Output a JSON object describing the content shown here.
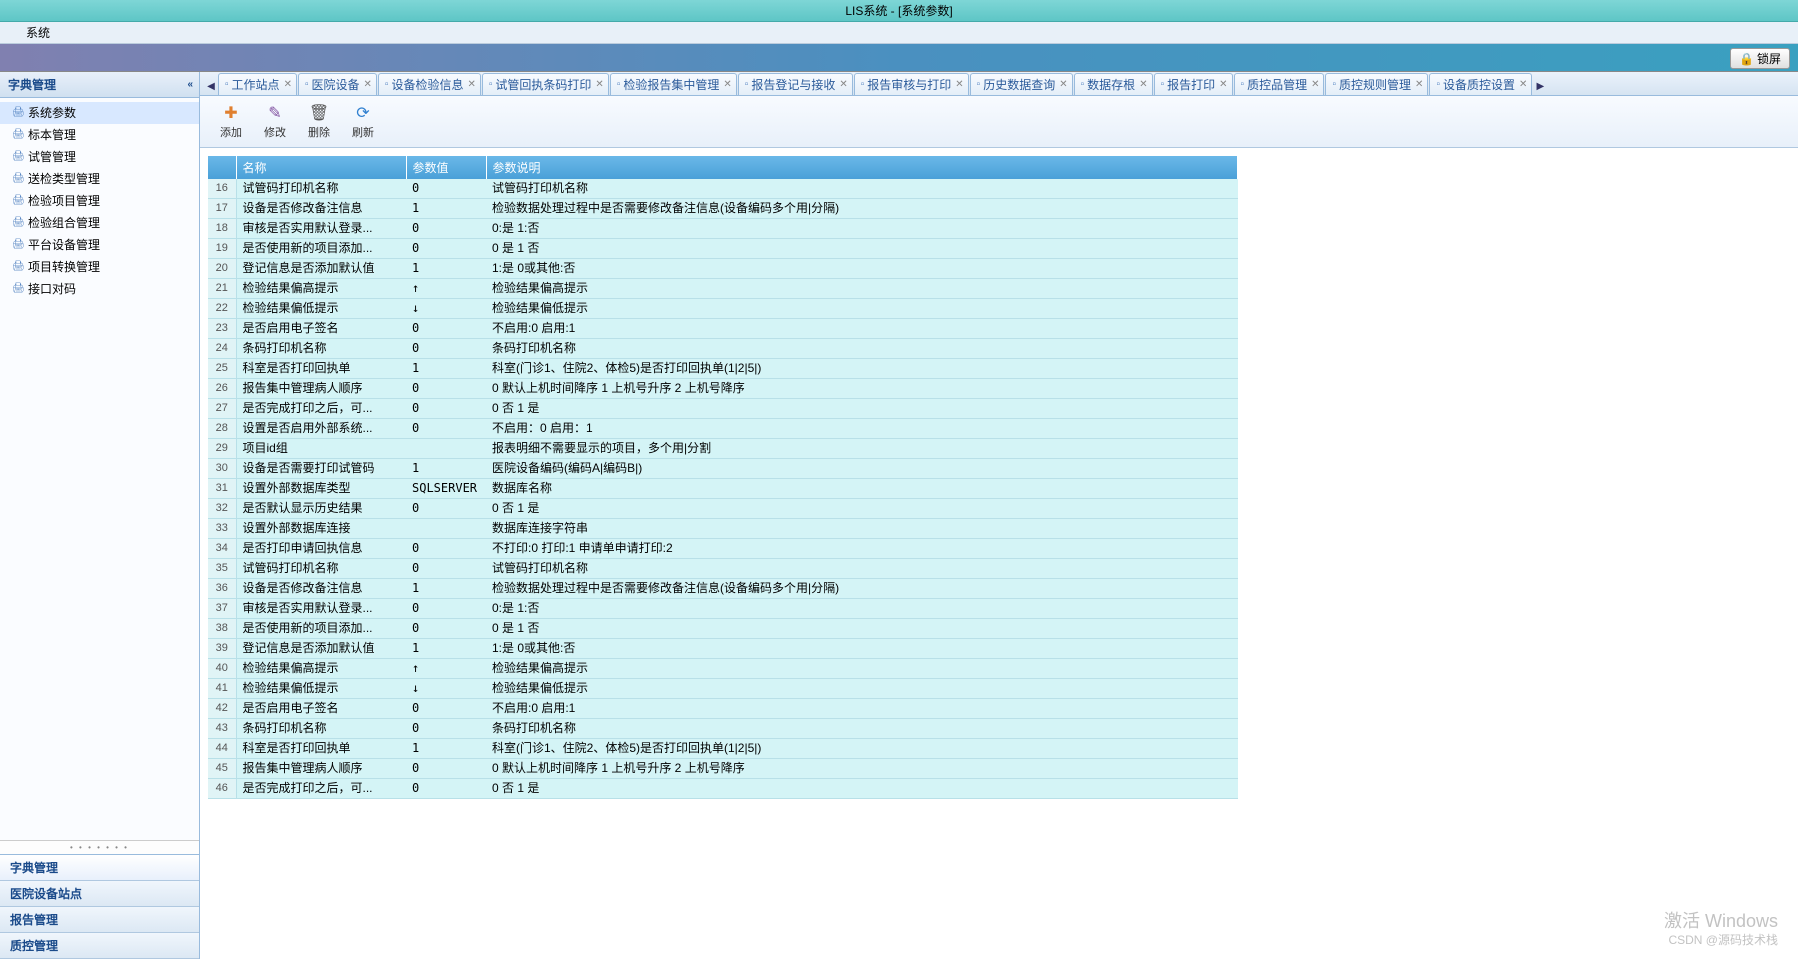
{
  "window": {
    "title": "LIS系统 - [系统参数]"
  },
  "menubar": {
    "system": "系统"
  },
  "lockscreen": {
    "label": "锁屏"
  },
  "sidebar": {
    "title": "字典管理",
    "items": [
      {
        "label": "系统参数",
        "active": true
      },
      {
        "label": "标本管理"
      },
      {
        "label": "试管管理"
      },
      {
        "label": "送检类型管理"
      },
      {
        "label": "检验项目管理"
      },
      {
        "label": "检验组合管理"
      },
      {
        "label": "平台设备管理"
      },
      {
        "label": "项目转换管理"
      },
      {
        "label": "接口对码"
      }
    ],
    "nav": [
      {
        "label": "字典管理",
        "selected": true
      },
      {
        "label": "医院设备站点"
      },
      {
        "label": "报告管理"
      },
      {
        "label": "质控管理"
      }
    ]
  },
  "tabs": {
    "items": [
      {
        "label": "工作站点"
      },
      {
        "label": "医院设备"
      },
      {
        "label": "设备检验信息"
      },
      {
        "label": "试管回执条码打印"
      },
      {
        "label": "检验报告集中管理"
      },
      {
        "label": "报告登记与接收"
      },
      {
        "label": "报告审核与打印"
      },
      {
        "label": "历史数据查询"
      },
      {
        "label": "数据存根"
      },
      {
        "label": "报告打印"
      },
      {
        "label": "质控品管理"
      },
      {
        "label": "质控规则管理"
      },
      {
        "label": "设备质控设置"
      }
    ]
  },
  "toolbar": {
    "add": "添加",
    "edit": "修改",
    "delete": "删除",
    "refresh": "刷新"
  },
  "grid": {
    "headers": {
      "name": "名称",
      "value": "参数值",
      "desc": "参数说明"
    },
    "rows": [
      {
        "n": 16,
        "name": "试管码打印机名称",
        "value": "0",
        "desc": "试管码打印机名称"
      },
      {
        "n": 17,
        "name": "设备是否修改备注信息",
        "value": "1",
        "desc": "检验数据处理过程中是否需要修改备注信息(设备编码多个用|分隔)"
      },
      {
        "n": 18,
        "name": "审核是否实用默认登录...",
        "value": "0",
        "desc": "0:是 1:否"
      },
      {
        "n": 19,
        "name": "是否使用新的项目添加...",
        "value": "0",
        "desc": "0 是 1 否"
      },
      {
        "n": 20,
        "name": "登记信息是否添加默认值",
        "value": "1",
        "desc": "1:是 0或其他:否"
      },
      {
        "n": 21,
        "name": "检验结果偏高提示",
        "value": "↑",
        "desc": "检验结果偏高提示"
      },
      {
        "n": 22,
        "name": "检验结果偏低提示",
        "value": "↓",
        "desc": "检验结果偏低提示"
      },
      {
        "n": 23,
        "name": "是否启用电子签名",
        "value": "0",
        "desc": "不启用:0 启用:1"
      },
      {
        "n": 24,
        "name": "条码打印机名称",
        "value": "0",
        "desc": "条码打印机名称"
      },
      {
        "n": 25,
        "name": "科室是否打印回执单",
        "value": "1",
        "desc": "科室(门诊1、住院2、体检5)是否打印回执单(1|2|5|)"
      },
      {
        "n": 26,
        "name": "报告集中管理病人顺序",
        "value": "0",
        "desc": "0 默认上机时间降序  1 上机号升序  2 上机号降序"
      },
      {
        "n": 27,
        "name": "是否完成打印之后，可...",
        "value": "0",
        "desc": "0 否 1 是"
      },
      {
        "n": 28,
        "name": "设置是否启用外部系统...",
        "value": "0",
        "desc": "不启用：0 启用：1"
      },
      {
        "n": 29,
        "name": "项目id组",
        "value": "",
        "desc": "报表明细不需要显示的项目，多个用|分割"
      },
      {
        "n": 30,
        "name": "设备是否需要打印试管码",
        "value": "1",
        "desc": "医院设备编码(编码A|编码B|)"
      },
      {
        "n": 31,
        "name": "设置外部数据库类型",
        "value": "SQLSERVER",
        "desc": "数据库名称"
      },
      {
        "n": 32,
        "name": "是否默认显示历史结果",
        "value": "0",
        "desc": "0 否  1 是"
      },
      {
        "n": 33,
        "name": "设置外部数据库连接",
        "value": "",
        "desc": "数据库连接字符串"
      },
      {
        "n": 34,
        "name": "是否打印申请回执信息",
        "value": "0",
        "desc": "不打印:0 打印:1 申请单申请打印:2"
      },
      {
        "n": 35,
        "name": "试管码打印机名称",
        "value": "0",
        "desc": "试管码打印机名称"
      },
      {
        "n": 36,
        "name": "设备是否修改备注信息",
        "value": "1",
        "desc": "检验数据处理过程中是否需要修改备注信息(设备编码多个用|分隔)"
      },
      {
        "n": 37,
        "name": "审核是否实用默认登录...",
        "value": "0",
        "desc": "0:是 1:否"
      },
      {
        "n": 38,
        "name": "是否使用新的项目添加...",
        "value": "0",
        "desc": "0 是 1 否"
      },
      {
        "n": 39,
        "name": "登记信息是否添加默认值",
        "value": "1",
        "desc": "1:是 0或其他:否"
      },
      {
        "n": 40,
        "name": "检验结果偏高提示",
        "value": "↑",
        "desc": "检验结果偏高提示"
      },
      {
        "n": 41,
        "name": "检验结果偏低提示",
        "value": "↓",
        "desc": "检验结果偏低提示"
      },
      {
        "n": 42,
        "name": "是否启用电子签名",
        "value": "0",
        "desc": "不启用:0 启用:1"
      },
      {
        "n": 43,
        "name": "条码打印机名称",
        "value": "0",
        "desc": "条码打印机名称"
      },
      {
        "n": 44,
        "name": "科室是否打印回执单",
        "value": "1",
        "desc": "科室(门诊1、住院2、体检5)是否打印回执单(1|2|5|)"
      },
      {
        "n": 45,
        "name": "报告集中管理病人顺序",
        "value": "0",
        "desc": "0 默认上机时间降序  1 上机号升序  2 上机号降序"
      },
      {
        "n": 46,
        "name": "是否完成打印之后，可...",
        "value": "0",
        "desc": "0 否 1 是"
      }
    ]
  },
  "watermark": {
    "line1": "激活 Windows",
    "line2": "CSDN @源码技术栈"
  }
}
